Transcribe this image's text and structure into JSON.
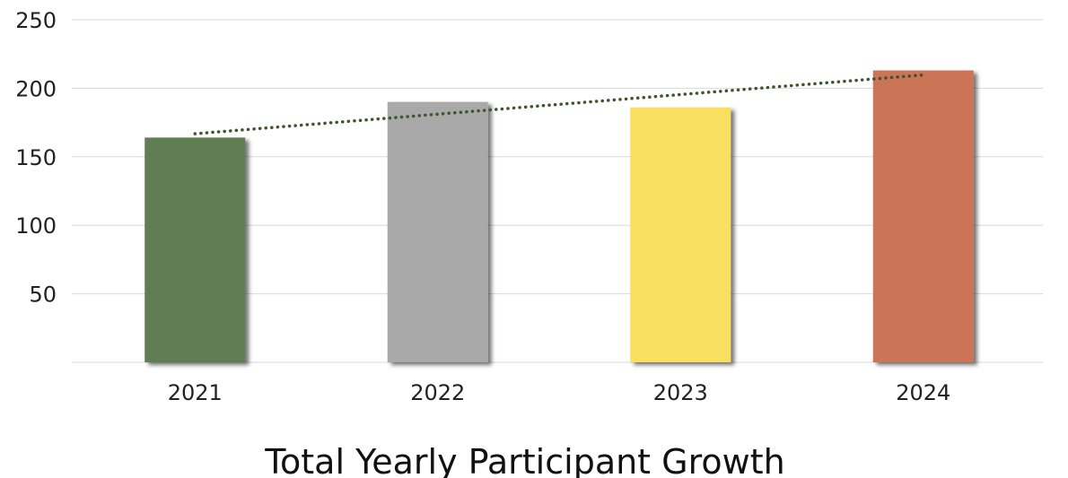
{
  "chart_data": {
    "type": "bar",
    "title": "Total Yearly Participant Growth",
    "xlabel": "",
    "ylabel": "",
    "categories": [
      "2021",
      "2022",
      "2023",
      "2024"
    ],
    "values": [
      164,
      190,
      186,
      213
    ],
    "colors": [
      "#5f7f52",
      "#a9a9a9",
      "#f8df5e",
      "#cc7556"
    ],
    "ylim": [
      0,
      250
    ],
    "yticks": [
      50,
      100,
      150,
      200,
      250
    ],
    "grid": true,
    "legend": "none",
    "trendline": {
      "style": "dotted",
      "color": "#3d5530",
      "type": "linear"
    }
  }
}
